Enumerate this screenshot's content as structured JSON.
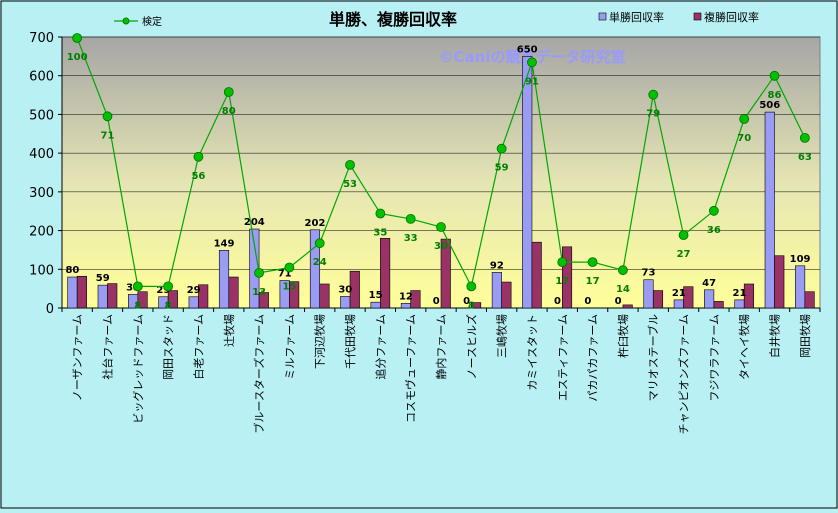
{
  "chart_data": {
    "type": "bar",
    "title": "単勝、複勝回収率",
    "watermark": "©Caniの競馬データ研究室",
    "ylim": [
      0,
      700
    ],
    "yticks": [
      0,
      100,
      200,
      300,
      400,
      500,
      600,
      700
    ],
    "legend_position": "top",
    "grid": true,
    "categories": [
      "ノーザンファーム",
      "社台ファーム",
      "ビッグレッドファーム",
      "岡田スタッド",
      "白老ファーム",
      "辻牧場",
      "ブルースターズファーム",
      "ミルファーム",
      "下河辺牧場",
      "千代田牧場",
      "追分ファーム",
      "コスモヴューファーム",
      "静内ファーム",
      "ノースヒルズ",
      "三嶋牧場",
      "カミイスタット",
      "エスティファーム",
      "パカパカファーム",
      "杵臼牧場",
      "マリオステーブル",
      "チャンピオンズファーム",
      "フジワラファーム",
      "タイヘイ牧場",
      "白井牧場",
      "岡田牧場"
    ],
    "series": [
      {
        "name": "単勝回収率",
        "kind": "bar",
        "color": "#9a9cf4",
        "values": [
          80,
          59,
          35,
          29,
          29,
          149,
          204,
          71,
          202,
          30,
          15,
          12,
          0,
          0,
          92,
          650,
          0,
          0,
          0,
          73,
          21,
          47,
          21,
          506,
          109
        ]
      },
      {
        "name": "複勝回収率",
        "kind": "bar",
        "color": "#993366",
        "values": [
          82,
          63,
          42,
          45,
          60,
          80,
          40,
          68,
          62,
          95,
          180,
          45,
          178,
          14,
          67,
          170,
          158,
          0,
          8,
          45,
          55,
          17,
          62,
          135,
          42
        ]
      },
      {
        "name": "検定",
        "kind": "line",
        "color": "#00a800",
        "axis": "secondary",
        "values": [
          100,
          71,
          8,
          8,
          56,
          80,
          13,
          15,
          24,
          53,
          35,
          33,
          30,
          8,
          59,
          91,
          17,
          17,
          14,
          79,
          27,
          36,
          70,
          86,
          63
        ]
      }
    ],
    "bar_labels": [
      "80",
      "59",
      "35",
      "29",
      "29",
      "149",
      "204",
      "71",
      "202",
      "30",
      "15",
      "12",
      "0",
      "0",
      "92",
      "650",
      "0",
      "0",
      "0",
      "73",
      "21",
      "47",
      "21",
      "506",
      "109"
    ],
    "line_labels": [
      "100",
      "71",
      "8",
      "8",
      "56",
      "80",
      "13",
      "15",
      "24",
      "53",
      "35",
      "33",
      "30",
      "8",
      "59",
      "91",
      "17",
      "17",
      "14",
      "79",
      "27",
      "36",
      "70",
      "86",
      "63"
    ]
  }
}
